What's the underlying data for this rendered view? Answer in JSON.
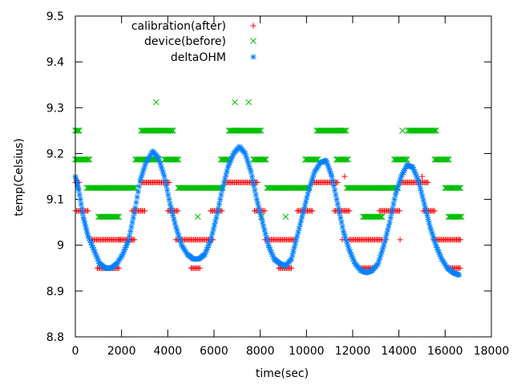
{
  "chart_data": {
    "type": "scatter",
    "xlabel": "time(sec)",
    "ylabel": "temp(Celsius)",
    "xlim": [
      0,
      18000
    ],
    "ylim": [
      8.8,
      9.5
    ],
    "x_ticks": [
      "0",
      "2000",
      "4000",
      "6000",
      "8000",
      "10000",
      "12000",
      "14000",
      "16000",
      "18000"
    ],
    "y_ticks": [
      "8.8",
      "8.9",
      "9",
      "9.1",
      "9.2",
      "9.3",
      "9.4",
      "9.5"
    ],
    "grid": false,
    "legend_position": "top",
    "series": [
      {
        "name": "calibration(after)",
        "marker": "plus",
        "color": "#ff0000",
        "segments": [
          {
            "x0": 0,
            "x1": 200,
            "y": 9.137
          },
          {
            "x0": 0,
            "x1": 220,
            "y": 9.075
          },
          {
            "x0": 220,
            "x1": 600,
            "y": 9.075
          },
          {
            "x0": 700,
            "x1": 1950,
            "y": 9.012
          },
          {
            "x0": 950,
            "x1": 1900,
            "y": 8.95
          },
          {
            "x0": 1900,
            "x1": 2600,
            "y": 9.012
          },
          {
            "x0": 2450,
            "x1": 3050,
            "y": 9.075
          },
          {
            "x0": 2850,
            "x1": 4100,
            "y": 9.137
          },
          {
            "x0": 4000,
            "x1": 4450,
            "y": 9.075
          },
          {
            "x0": 4350,
            "x1": 5950,
            "y": 9.012
          },
          {
            "x0": 5000,
            "x1": 5400,
            "y": 8.95
          },
          {
            "x0": 5850,
            "x1": 6350,
            "y": 9.075
          },
          {
            "x0": 6500,
            "x1": 7900,
            "y": 9.137
          },
          {
            "x0": 7750,
            "x1": 8150,
            "y": 9.075
          },
          {
            "x0": 8200,
            "x1": 9550,
            "y": 9.012
          },
          {
            "x0": 8800,
            "x1": 9400,
            "y": 8.95
          },
          {
            "x0": 9600,
            "x1": 10300,
            "y": 9.075
          },
          {
            "x0": 10250,
            "x1": 11400,
            "y": 9.137
          },
          {
            "x0": 11200,
            "x1": 11900,
            "y": 9.075
          },
          {
            "x0": 11850,
            "x1": 13300,
            "y": 9.012
          },
          {
            "x0": 12350,
            "x1": 13000,
            "y": 8.95
          },
          {
            "x0": 13150,
            "x1": 14050,
            "y": 9.075
          },
          {
            "x0": 14050,
            "x1": 15300,
            "y": 9.137
          },
          {
            "x0": 15050,
            "x1": 15550,
            "y": 9.075
          },
          {
            "x0": 15500,
            "x1": 16700,
            "y": 9.012
          },
          {
            "x0": 16100,
            "x1": 16650,
            "y": 8.95
          }
        ],
        "points": [
          [
            2450,
            9.012
          ],
          [
            8200,
            9.075
          ],
          [
            11550,
            9.012
          ],
          [
            11650,
            9.15
          ],
          [
            13450,
            9.012
          ],
          [
            14050,
            9.012
          ],
          [
            15000,
            9.15
          ],
          [
            16650,
            9.012
          ]
        ]
      },
      {
        "name": "device(before)",
        "marker": "cross",
        "color": "#00c000",
        "segments": [
          {
            "x0": 0,
            "x1": 200,
            "y": 9.25
          },
          {
            "x0": 0,
            "x1": 650,
            "y": 9.187
          },
          {
            "x0": 500,
            "x1": 2600,
            "y": 9.125
          },
          {
            "x0": 1000,
            "x1": 1900,
            "y": 9.062
          },
          {
            "x0": 2600,
            "x1": 3600,
            "y": 9.187
          },
          {
            "x0": 2850,
            "x1": 4250,
            "y": 9.25
          },
          {
            "x0": 3850,
            "x1": 4500,
            "y": 9.187
          },
          {
            "x0": 4450,
            "x1": 6400,
            "y": 9.125
          },
          {
            "x0": 6300,
            "x1": 6650,
            "y": 9.187
          },
          {
            "x0": 6650,
            "x1": 8050,
            "y": 9.25
          },
          {
            "x0": 7700,
            "x1": 8250,
            "y": 9.187
          },
          {
            "x0": 8300,
            "x1": 10150,
            "y": 9.125
          },
          {
            "x0": 9950,
            "x1": 10500,
            "y": 9.187
          },
          {
            "x0": 10450,
            "x1": 11750,
            "y": 9.25
          },
          {
            "x0": 11300,
            "x1": 11800,
            "y": 9.187
          },
          {
            "x0": 11750,
            "x1": 14000,
            "y": 9.125
          },
          {
            "x0": 12450,
            "x1": 13300,
            "y": 9.062
          },
          {
            "x0": 13800,
            "x1": 14400,
            "y": 9.187
          },
          {
            "x0": 14400,
            "x1": 15650,
            "y": 9.25
          },
          {
            "x0": 15550,
            "x1": 16200,
            "y": 9.187
          },
          {
            "x0": 16000,
            "x1": 16700,
            "y": 9.125
          },
          {
            "x0": 16150,
            "x1": 16700,
            "y": 9.062
          }
        ],
        "points": [
          [
            3500,
            9.312
          ],
          [
            5300,
            9.062
          ],
          [
            6900,
            9.312
          ],
          [
            7500,
            9.312
          ],
          [
            8050,
            9.062
          ],
          [
            9100,
            9.062
          ],
          [
            14150,
            9.25
          ]
        ]
      },
      {
        "name": "deltaOHM",
        "marker": "star",
        "color": "#0080ff",
        "curve": [
          [
            0,
            9.15
          ],
          [
            150,
            9.12
          ],
          [
            350,
            9.06
          ],
          [
            550,
            9.02
          ],
          [
            800,
            8.99
          ],
          [
            1050,
            8.96
          ],
          [
            1300,
            8.95
          ],
          [
            1550,
            8.95
          ],
          [
            1800,
            8.96
          ],
          [
            2050,
            8.98
          ],
          [
            2300,
            9.01
          ],
          [
            2550,
            9.07
          ],
          [
            2800,
            9.14
          ],
          [
            3050,
            9.18
          ],
          [
            3350,
            9.205
          ],
          [
            3600,
            9.19
          ],
          [
            3850,
            9.15
          ],
          [
            4100,
            9.09
          ],
          [
            4350,
            9.04
          ],
          [
            4600,
            9.0
          ],
          [
            4850,
            8.98
          ],
          [
            5100,
            8.97
          ],
          [
            5350,
            8.97
          ],
          [
            5600,
            8.98
          ],
          [
            5850,
            9.01
          ],
          [
            6100,
            9.06
          ],
          [
            6350,
            9.12
          ],
          [
            6600,
            9.17
          ],
          [
            6850,
            9.2
          ],
          [
            7100,
            9.215
          ],
          [
            7350,
            9.2
          ],
          [
            7600,
            9.16
          ],
          [
            7850,
            9.1
          ],
          [
            8100,
            9.05
          ],
          [
            8350,
            9.0
          ],
          [
            8600,
            8.97
          ],
          [
            8850,
            8.96
          ],
          [
            9100,
            8.955
          ],
          [
            9350,
            8.97
          ],
          [
            9600,
            9.02
          ],
          [
            9850,
            9.07
          ],
          [
            10100,
            9.12
          ],
          [
            10350,
            9.16
          ],
          [
            10600,
            9.18
          ],
          [
            10850,
            9.185
          ],
          [
            11100,
            9.15
          ],
          [
            11350,
            9.09
          ],
          [
            11600,
            9.03
          ],
          [
            11850,
            8.99
          ],
          [
            12100,
            8.96
          ],
          [
            12350,
            8.945
          ],
          [
            12600,
            8.94
          ],
          [
            12850,
            8.945
          ],
          [
            13100,
            8.96
          ],
          [
            13350,
            9.0
          ],
          [
            13600,
            9.05
          ],
          [
            13850,
            9.11
          ],
          [
            14100,
            9.15
          ],
          [
            14350,
            9.175
          ],
          [
            14600,
            9.17
          ],
          [
            14850,
            9.14
          ],
          [
            15100,
            9.09
          ],
          [
            15350,
            9.04
          ],
          [
            15600,
            9.0
          ],
          [
            15850,
            8.97
          ],
          [
            16100,
            8.95
          ],
          [
            16350,
            8.94
          ],
          [
            16600,
            8.935
          ]
        ]
      }
    ]
  }
}
